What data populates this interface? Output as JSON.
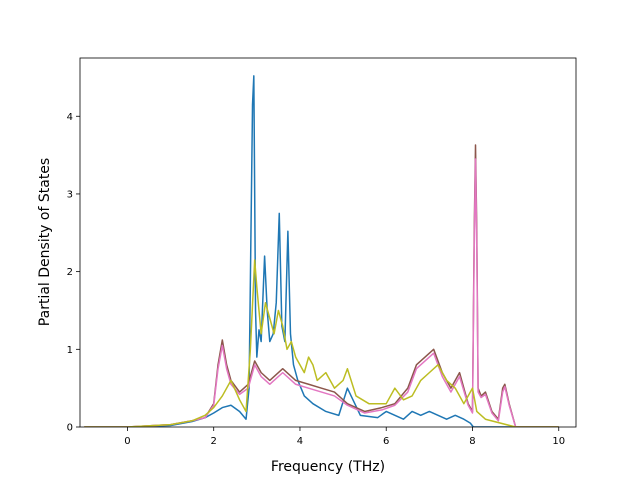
{
  "chart_data": {
    "type": "line",
    "title": "",
    "xlabel": "Frequency (THz)",
    "ylabel": "Partial Density of States",
    "xlim": [
      -1.1,
      10.4
    ],
    "ylim": [
      0,
      4.75
    ],
    "xticks": [
      0,
      2,
      4,
      6,
      8,
      10
    ],
    "yticks": [
      0,
      1,
      2,
      3,
      4
    ],
    "grid": false,
    "legend": "none",
    "series": [
      {
        "color": "#1f77b4",
        "x": [
          -1.0,
          0.0,
          1.0,
          1.5,
          1.8,
          2.0,
          2.2,
          2.4,
          2.6,
          2.75,
          2.82,
          2.9,
          2.93,
          2.97,
          3.0,
          3.05,
          3.1,
          3.18,
          3.24,
          3.3,
          3.38,
          3.45,
          3.52,
          3.58,
          3.65,
          3.72,
          3.78,
          3.85,
          3.95,
          4.1,
          4.3,
          4.6,
          4.9,
          5.1,
          5.4,
          5.8,
          6.0,
          6.2,
          6.4,
          6.6,
          6.8,
          7.0,
          7.2,
          7.4,
          7.6,
          7.8,
          7.95,
          8.02,
          8.06,
          8.1,
          8.2,
          8.6,
          9.0,
          10.0
        ],
        "y": [
          0,
          0.0,
          0.02,
          0.07,
          0.12,
          0.18,
          0.25,
          0.28,
          0.2,
          0.1,
          0.5,
          4.15,
          4.52,
          1.5,
          0.9,
          1.25,
          1.1,
          2.2,
          1.5,
          1.1,
          1.2,
          1.6,
          2.75,
          1.3,
          1.1,
          2.52,
          1.2,
          0.8,
          0.6,
          0.4,
          0.3,
          0.2,
          0.15,
          0.5,
          0.15,
          0.12,
          0.2,
          0.15,
          0.1,
          0.2,
          0.15,
          0.2,
          0.15,
          0.1,
          0.15,
          0.1,
          0.05,
          0.0,
          0.0,
          0.0,
          0.0,
          0.0,
          0.0,
          0
        ]
      },
      {
        "color": "#8c564b",
        "x": [
          -1.0,
          0.0,
          1.0,
          1.5,
          1.8,
          2.0,
          2.1,
          2.2,
          2.3,
          2.4,
          2.6,
          2.8,
          2.95,
          3.1,
          3.3,
          3.6,
          3.9,
          4.2,
          4.5,
          4.8,
          5.1,
          5.5,
          5.9,
          6.2,
          6.5,
          6.7,
          6.9,
          7.1,
          7.3,
          7.5,
          7.7,
          7.9,
          8.0,
          8.04,
          8.07,
          8.1,
          8.13,
          8.2,
          8.3,
          8.45,
          8.6,
          8.7,
          8.75,
          8.85,
          9.0,
          10.0
        ],
        "y": [
          0,
          0.0,
          0.03,
          0.08,
          0.12,
          0.3,
          0.8,
          1.12,
          0.8,
          0.6,
          0.45,
          0.55,
          0.85,
          0.7,
          0.6,
          0.75,
          0.6,
          0.55,
          0.5,
          0.45,
          0.3,
          0.2,
          0.25,
          0.3,
          0.5,
          0.8,
          0.9,
          1.0,
          0.7,
          0.5,
          0.7,
          0.3,
          0.2,
          2.5,
          3.63,
          2.5,
          0.5,
          0.4,
          0.45,
          0.2,
          0.1,
          0.5,
          0.55,
          0.3,
          0.0,
          0
        ]
      },
      {
        "color": "#e377c2",
        "x": [
          -1.0,
          0.0,
          1.0,
          1.5,
          1.8,
          2.0,
          2.1,
          2.2,
          2.3,
          2.4,
          2.6,
          2.8,
          2.95,
          3.1,
          3.3,
          3.6,
          3.9,
          4.2,
          4.5,
          4.8,
          5.1,
          5.5,
          5.9,
          6.2,
          6.5,
          6.7,
          6.9,
          7.1,
          7.3,
          7.5,
          7.7,
          7.9,
          8.0,
          8.04,
          8.07,
          8.1,
          8.13,
          8.2,
          8.3,
          8.45,
          8.6,
          8.7,
          8.75,
          8.85,
          9.0,
          10.0
        ],
        "y": [
          0,
          0.0,
          0.03,
          0.08,
          0.12,
          0.28,
          0.75,
          1.05,
          0.75,
          0.55,
          0.42,
          0.5,
          0.8,
          0.65,
          0.55,
          0.7,
          0.55,
          0.5,
          0.45,
          0.4,
          0.28,
          0.18,
          0.22,
          0.28,
          0.45,
          0.75,
          0.85,
          0.95,
          0.65,
          0.45,
          0.65,
          0.28,
          0.18,
          2.3,
          3.45,
          2.3,
          0.45,
          0.38,
          0.42,
          0.18,
          0.08,
          0.45,
          0.52,
          0.28,
          0.0,
          0
        ]
      },
      {
        "color": "#bcbd22",
        "x": [
          -1.0,
          0.0,
          1.0,
          1.5,
          1.8,
          2.0,
          2.2,
          2.4,
          2.6,
          2.75,
          2.85,
          2.95,
          3.0,
          3.1,
          3.2,
          3.3,
          3.4,
          3.5,
          3.6,
          3.7,
          3.8,
          3.9,
          4.0,
          4.1,
          4.2,
          4.3,
          4.4,
          4.6,
          4.8,
          5.0,
          5.1,
          5.3,
          5.6,
          6.0,
          6.2,
          6.4,
          6.6,
          6.8,
          7.0,
          7.2,
          7.4,
          7.6,
          7.8,
          8.0,
          8.1,
          8.3,
          9.0,
          10.0
        ],
        "y": [
          0,
          0.0,
          0.03,
          0.08,
          0.15,
          0.25,
          0.4,
          0.6,
          0.35,
          0.2,
          1.0,
          2.15,
          1.8,
          1.2,
          1.6,
          1.4,
          1.2,
          1.5,
          1.3,
          1.0,
          1.1,
          0.9,
          0.8,
          0.7,
          0.9,
          0.8,
          0.6,
          0.7,
          0.5,
          0.6,
          0.75,
          0.4,
          0.3,
          0.3,
          0.5,
          0.35,
          0.4,
          0.6,
          0.7,
          0.8,
          0.6,
          0.5,
          0.3,
          0.5,
          0.2,
          0.1,
          0.0,
          0
        ]
      }
    ]
  }
}
